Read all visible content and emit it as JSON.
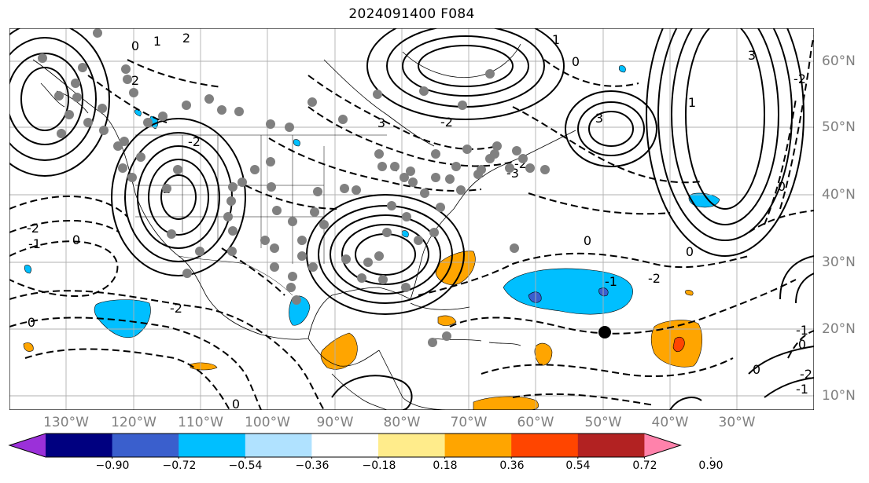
{
  "title": "2024091400 F084",
  "lon_labels": [
    "130°W",
    "120°W",
    "110°W",
    "100°W",
    "90°W",
    "80°W",
    "70°W",
    "60°W",
    "50°W",
    "40°W",
    "30°W"
  ],
  "lat_labels": [
    "60°N",
    "50°N",
    "40°N",
    "30°N",
    "20°N",
    "10°N"
  ],
  "colorbar": {
    "ticks": [
      "−0.90",
      "−0.72",
      "−0.54",
      "−0.36",
      "−0.18",
      "0.18",
      "0.36",
      "0.54",
      "0.72",
      "0.90"
    ],
    "colors": [
      "#9b30d9",
      "#000080",
      "#3a5fcd",
      "#00bfff",
      "#b0e2ff",
      "#ffffff",
      "#ffec8b",
      "#ffa500",
      "#ff4500",
      "#b22222",
      "#ff82ab"
    ]
  },
  "contour_labels": [
    "0",
    "1",
    "2",
    "-2",
    "2",
    "2",
    "0",
    "3",
    "-2",
    "1",
    "0",
    "3",
    "-2",
    "-3",
    "-2",
    "-1",
    "-2",
    "-1",
    "0",
    "0",
    "-2",
    "-1",
    "0",
    "-1",
    "-2",
    "0",
    "0",
    "1",
    "-2",
    "0",
    "3",
    "0"
  ],
  "colors": {
    "positive_fill": "#ffa500",
    "positive_core": "#ff4500",
    "negative_fill": "#00bfff",
    "negative_core": "#3a5fcd",
    "marker": "#808080"
  }
}
